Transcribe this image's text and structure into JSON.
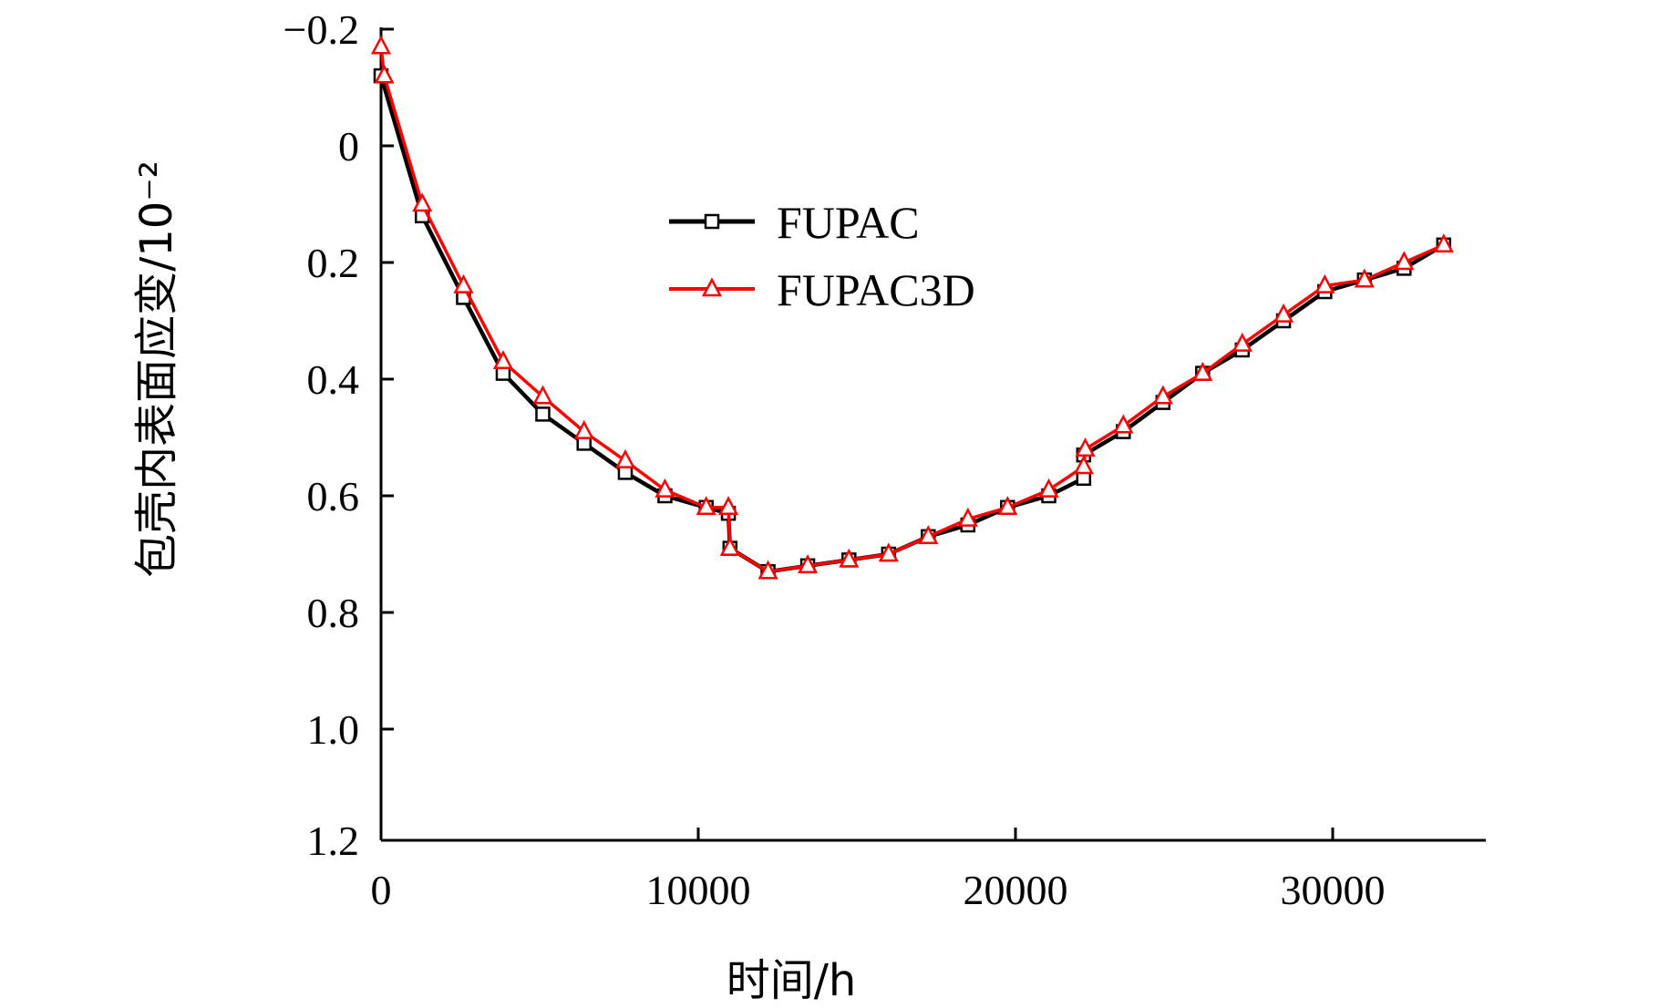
{
  "chart_data": {
    "type": "line",
    "xlabel": "时间/h",
    "ylabel": "包壳内表面应变/10⁻²",
    "xlim": [
      0,
      35000
    ],
    "ylim": [
      -0.2,
      1.2
    ],
    "y_inverted": true,
    "x_ticks": [
      "0",
      "10000",
      "20000",
      "30000"
    ],
    "y_ticks": [
      "−0.2",
      "0",
      "0.2",
      "0.4",
      "0.6",
      "0.8",
      "1.0",
      "1.2"
    ],
    "grid": false,
    "legend_position": "upper-center",
    "series": [
      {
        "name": "FUPAC",
        "color": "#000000",
        "marker": "square",
        "points": [
          [
            0,
            -0.12
          ],
          [
            1300,
            0.12
          ],
          [
            2600,
            0.26
          ],
          [
            3850,
            0.39
          ],
          [
            5100,
            0.46
          ],
          [
            6400,
            0.51
          ],
          [
            7700,
            0.56
          ],
          [
            8950,
            0.6
          ],
          [
            10250,
            0.62
          ],
          [
            10950,
            0.63
          ],
          [
            11000,
            0.69
          ],
          [
            12200,
            0.73
          ],
          [
            13450,
            0.72
          ],
          [
            14750,
            0.71
          ],
          [
            16000,
            0.7
          ],
          [
            17250,
            0.67
          ],
          [
            18500,
            0.65
          ],
          [
            19750,
            0.62
          ],
          [
            21050,
            0.6
          ],
          [
            22150,
            0.57
          ],
          [
            22150,
            0.53
          ],
          [
            23400,
            0.49
          ],
          [
            24650,
            0.44
          ],
          [
            25900,
            0.39
          ],
          [
            27150,
            0.35
          ],
          [
            28450,
            0.3
          ],
          [
            29750,
            0.25
          ],
          [
            31000,
            0.23
          ],
          [
            32250,
            0.21
          ],
          [
            33500,
            0.17
          ]
        ]
      },
      {
        "name": "FUPAC3D",
        "color": "#ff0000",
        "marker": "triangle",
        "points": [
          [
            0,
            -0.17
          ],
          [
            100,
            -0.12
          ],
          [
            1300,
            0.1
          ],
          [
            2600,
            0.24
          ],
          [
            3850,
            0.37
          ],
          [
            5100,
            0.43
          ],
          [
            6400,
            0.49
          ],
          [
            7700,
            0.54
          ],
          [
            8950,
            0.59
          ],
          [
            10250,
            0.62
          ],
          [
            10950,
            0.62
          ],
          [
            11000,
            0.69
          ],
          [
            12200,
            0.73
          ],
          [
            13450,
            0.72
          ],
          [
            14750,
            0.71
          ],
          [
            16000,
            0.7
          ],
          [
            17250,
            0.67
          ],
          [
            18500,
            0.64
          ],
          [
            19750,
            0.62
          ],
          [
            21050,
            0.59
          ],
          [
            22150,
            0.55
          ],
          [
            22200,
            0.52
          ],
          [
            23400,
            0.48
          ],
          [
            24650,
            0.43
          ],
          [
            25900,
            0.39
          ],
          [
            27150,
            0.34
          ],
          [
            28450,
            0.29
          ],
          [
            29750,
            0.24
          ],
          [
            31000,
            0.23
          ],
          [
            32250,
            0.2
          ],
          [
            33500,
            0.17
          ]
        ]
      }
    ]
  }
}
